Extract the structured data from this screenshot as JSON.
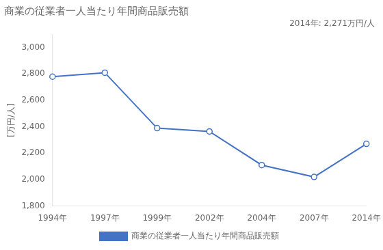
{
  "chart_data": {
    "type": "line",
    "title": "商業の従業者一人当たり年間商品販売額",
    "annotation": "2014年: 2,271万円/人",
    "ylabel": "[万円/人]",
    "categories": [
      "1994年",
      "1997年",
      "1999年",
      "2002年",
      "2004年",
      "2007年",
      "2014年"
    ],
    "series": [
      {
        "name": "商業の従業者一人当たり年間商品販売額",
        "color": "#4472C4",
        "marker": "circle",
        "values": [
          2780,
          2810,
          2390,
          2365,
          2110,
          2020,
          2271
        ]
      }
    ],
    "ylim": [
      1800,
      3100
    ],
    "yticks": [
      {
        "value": 1800,
        "label": "1,800"
      },
      {
        "value": 2000,
        "label": "2,000"
      },
      {
        "value": 2200,
        "label": "2,200"
      },
      {
        "value": 2400,
        "label": "2,400"
      },
      {
        "value": 2600,
        "label": "2,600"
      },
      {
        "value": 2800,
        "label": "2,800"
      },
      {
        "value": 3000,
        "label": "3,000"
      }
    ],
    "grid": false,
    "legend": "bottom"
  }
}
